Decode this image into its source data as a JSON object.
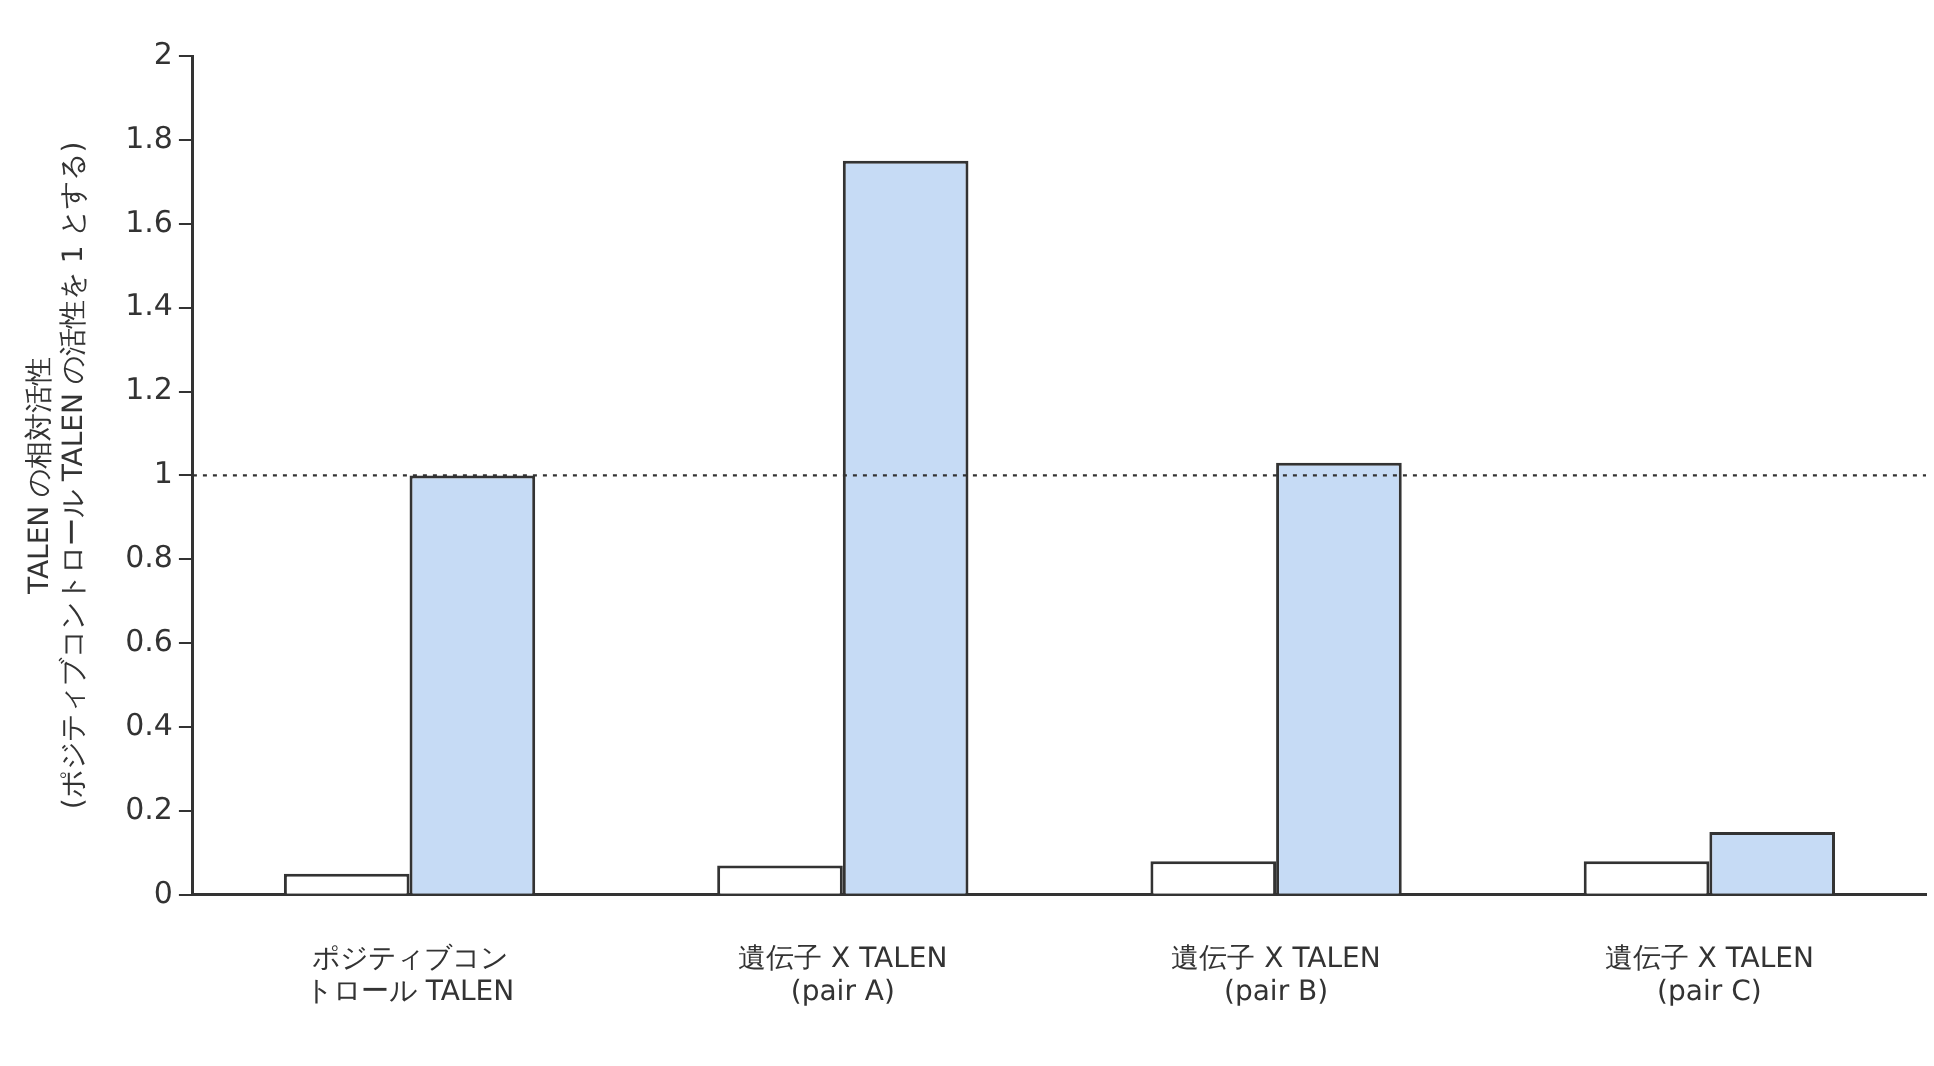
{
  "chart_data": {
    "type": "bar",
    "ylabel": "TALEN の相対活性\n(ポジティブコントロール TALEN の活性を 1 とする)",
    "categories": [
      "ポジティブコントロール TALEN",
      "遺伝子 X TALEN (pair A)",
      "遺伝子 X TALEN (pair B)",
      "遺伝子 X TALEN (pair C)"
    ],
    "series": [
      {
        "color": "#ffffff",
        "values": [
          0.05,
          0.07,
          0.08,
          0.08
        ]
      },
      {
        "color": "#c6dbf5",
        "values": [
          1.0,
          1.75,
          1.03,
          0.15
        ]
      }
    ],
    "ylim": [
      0,
      2
    ],
    "yticks": [
      0,
      0.2,
      0.4,
      0.6,
      0.8,
      1,
      1.2,
      1.4,
      1.6,
      1.8,
      2
    ],
    "ref_lines": [
      {
        "axis": "y",
        "value": 1,
        "line_style": "dotted"
      }
    ],
    "grid": false,
    "legend": false
  }
}
